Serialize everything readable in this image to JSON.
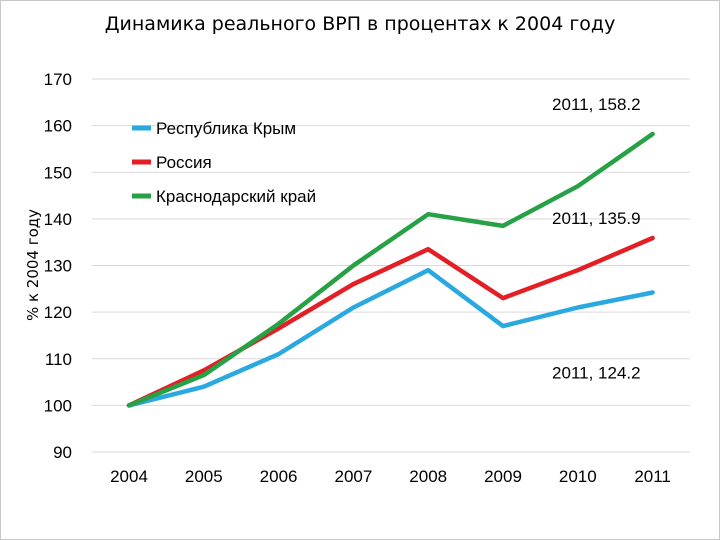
{
  "chart_data": {
    "type": "line",
    "title": "Динамика реального ВРП в процентах к 2004 году",
    "ylabel": "% к 2004 году",
    "xlabel": "",
    "categories": [
      "2004",
      "2005",
      "2006",
      "2007",
      "2008",
      "2009",
      "2010",
      "2011"
    ],
    "ylim": [
      90,
      170
    ],
    "yticks": [
      90,
      100,
      110,
      120,
      130,
      140,
      150,
      160,
      170
    ],
    "grid": true,
    "legend_position": "top-left",
    "series": [
      {
        "name": "Республика Крым",
        "color": "#29a9e0",
        "values": [
          100,
          104,
          111,
          121,
          129,
          117,
          121,
          124.2
        ]
      },
      {
        "name": "Россия",
        "color": "#e31e24",
        "values": [
          100,
          107.5,
          116.5,
          126,
          133.5,
          123,
          129,
          135.9
        ]
      },
      {
        "name": "Краснодарский край",
        "color": "#27a146",
        "values": [
          100,
          106.5,
          117.5,
          130,
          141,
          138.5,
          147,
          158.2
        ]
      }
    ],
    "annotations": [
      {
        "text": "2011, 158.2",
        "series": 2
      },
      {
        "text": "2011, 135.9",
        "series": 1
      },
      {
        "text": "2011, 124.2",
        "series": 0
      }
    ]
  }
}
